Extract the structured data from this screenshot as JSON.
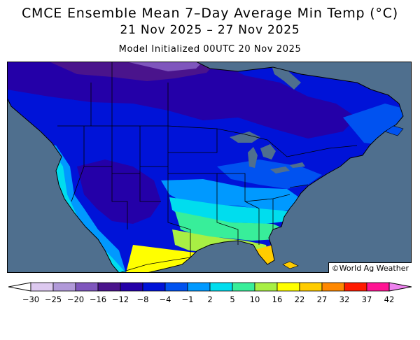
{
  "title": {
    "line1": "CMCE Ensemble Mean 7–Day Average Min Temp (°C)",
    "line2": "21 Nov 2025 – 27 Nov 2025"
  },
  "subtitle": "Model Initialized 00UTC 20 Nov 2025",
  "credit": "©World Ag Weather",
  "legend": {
    "tick_labels": [
      "−30",
      "−25",
      "−20",
      "−16",
      "−12",
      "−8",
      "−4",
      "−1",
      "2",
      "5",
      "10",
      "16",
      "22",
      "27",
      "32",
      "37",
      "42"
    ],
    "below_color": "#ffffff",
    "above_color": "#ee82ee",
    "bin_colors": [
      "#ddc9f0",
      "#b199d9",
      "#7f56bd",
      "#4a148c",
      "#2400a8",
      "#0013d8",
      "#0052f0",
      "#0099ff",
      "#00ddee",
      "#38ee9a",
      "#a8ef44",
      "#ffff00",
      "#ffcc00",
      "#ff8800",
      "#ff1a00",
      "#ff1493"
    ]
  },
  "map": {
    "ocean_color": "#4f6f8e",
    "background_lake_color": "#4f6f8e"
  }
}
